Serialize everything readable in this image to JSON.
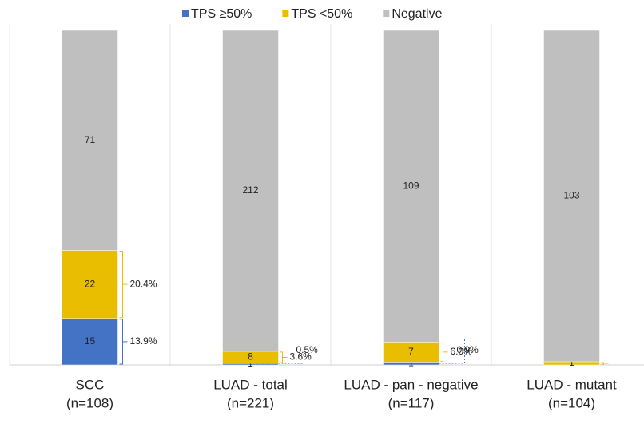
{
  "chart_data": {
    "type": "stacked-proportion-bar",
    "categories": [
      "SCC",
      "LUAD - total",
      "LUAD - pan - negative",
      "LUAD - mutant"
    ],
    "category_sublabels": [
      "(n=108)",
      "(n=221)",
      "(n=117)",
      "(n=104)"
    ],
    "series": [
      {
        "name": "TPS ≥50%",
        "color": "#4472c4",
        "values": [
          15,
          1,
          1,
          0
        ],
        "percent_labels": [
          "13.9%",
          "0.5%",
          "0.9%",
          null
        ]
      },
      {
        "name": "TPS <50%",
        "color": "#e9bd00",
        "values": [
          22,
          8,
          7,
          1
        ],
        "percent_labels": [
          "20.4%",
          "3.6%",
          "6.0%",
          "1.0%"
        ]
      },
      {
        "name": "Negative",
        "color": "#bfbfbf",
        "values": [
          71,
          212,
          109,
          103
        ],
        "percent_labels": [
          null,
          null,
          null,
          null
        ]
      }
    ],
    "legend": "top"
  }
}
